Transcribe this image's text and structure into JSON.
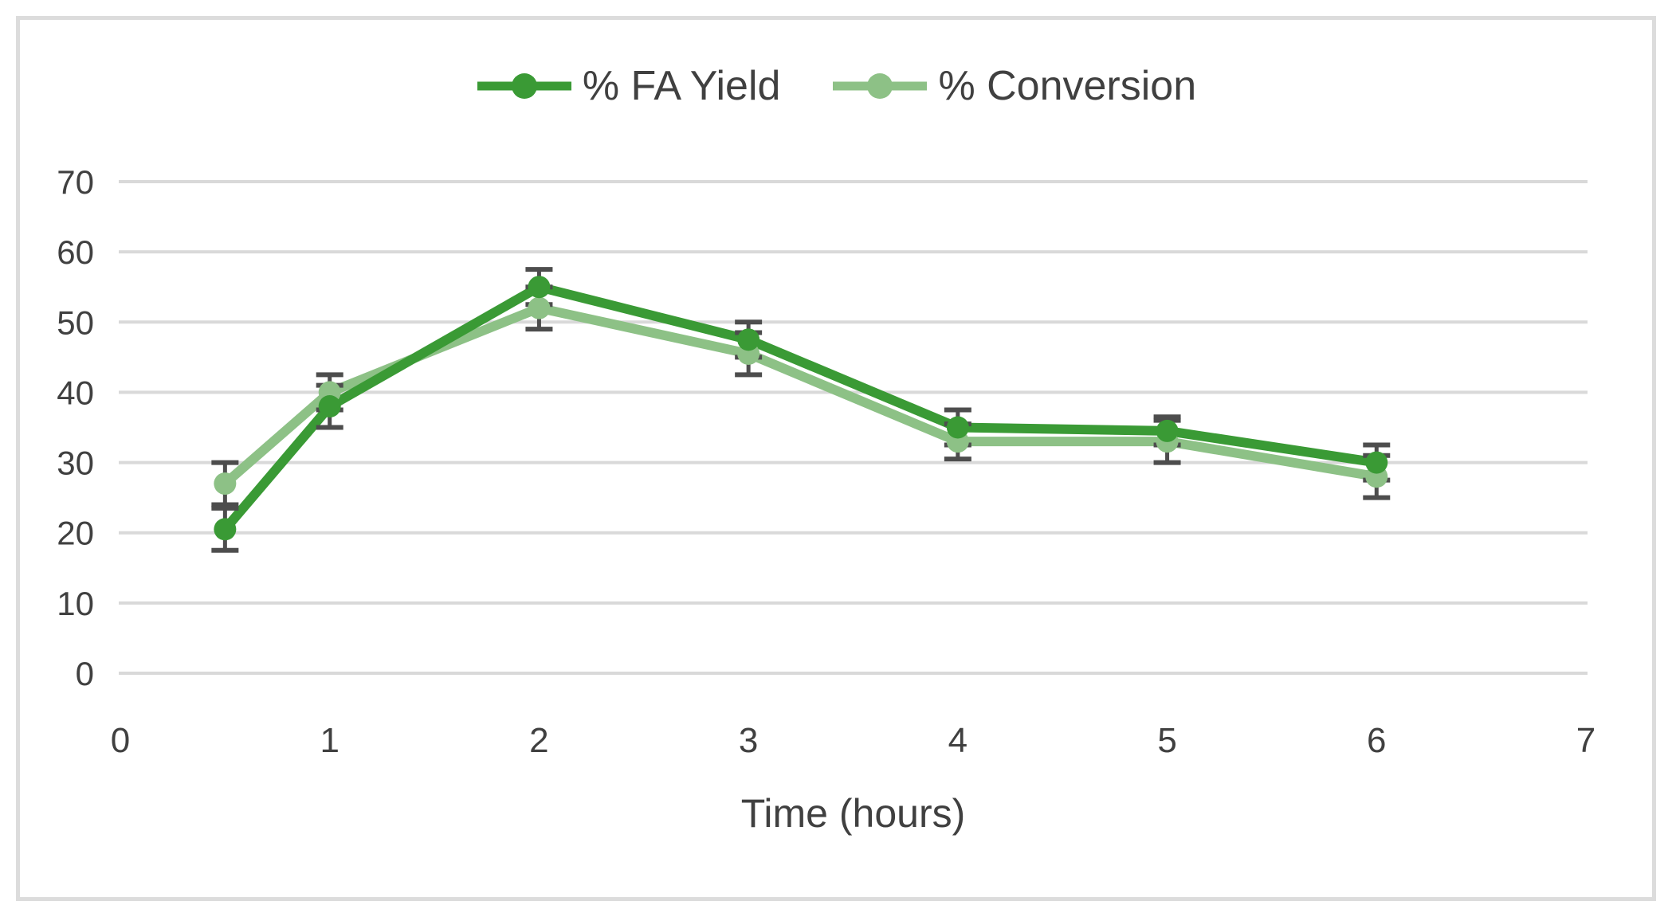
{
  "chart_data": {
    "type": "line",
    "xlabel": "Time (hours)",
    "ylabel": "",
    "xlim": [
      0,
      7
    ],
    "ylim": [
      0,
      70
    ],
    "x_ticks": [
      0,
      1,
      2,
      3,
      4,
      5,
      6,
      7
    ],
    "y_ticks": [
      0,
      10,
      20,
      30,
      40,
      50,
      60,
      70
    ],
    "grid": "horizontal",
    "legend_position": "top-center",
    "x": [
      0.5,
      1,
      2,
      3,
      4,
      5,
      6
    ],
    "series": [
      {
        "name": "% FA Yield",
        "color": "#3a9a35",
        "marker": "circle",
        "values": [
          20.5,
          38,
          55,
          47.5,
          35,
          34.5,
          30
        ],
        "error_bars": [
          3,
          3,
          2.5,
          2.5,
          2.5,
          2,
          2.5
        ]
      },
      {
        "name": "% Conversion",
        "color": "#8dc186",
        "marker": "circle",
        "values": [
          27,
          40,
          52,
          45.5,
          33,
          33,
          28
        ],
        "error_bars": [
          3,
          2.5,
          3,
          3,
          2.5,
          3,
          3
        ]
      }
    ],
    "error_bar_color": "#4d4d4d",
    "gridline_color": "#d9d9d9",
    "text_color": "#404040"
  }
}
